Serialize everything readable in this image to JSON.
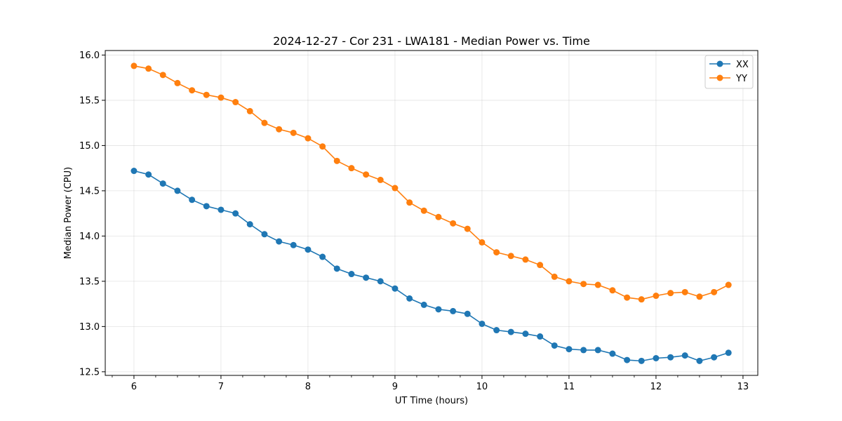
{
  "chart_data": {
    "type": "line",
    "title": "2024-12-27 - Cor 231 - LWA181 - Median Power vs. Time",
    "xlabel": "UT Time (hours)",
    "ylabel": "Median Power (CPU)",
    "xlim": [
      5.67,
      13.17
    ],
    "ylim": [
      12.46,
      16.05
    ],
    "xticks": [
      6,
      7,
      8,
      9,
      10,
      11,
      12,
      13
    ],
    "xtick_labels": [
      "6",
      "7",
      "8",
      "9",
      "10",
      "11",
      "12",
      "13"
    ],
    "yticks": [
      12.5,
      13.0,
      13.5,
      14.0,
      14.5,
      15.0,
      15.5,
      16.0
    ],
    "ytick_labels": [
      "12.5",
      "13.0",
      "13.5",
      "14.0",
      "14.5",
      "15.0",
      "15.5",
      "16.0"
    ],
    "x_minor_step": 0.25,
    "grid": true,
    "legend_position": "top-right",
    "x": [
      6.0,
      6.167,
      6.333,
      6.5,
      6.667,
      6.833,
      7.0,
      7.167,
      7.333,
      7.5,
      7.667,
      7.833,
      8.0,
      8.167,
      8.333,
      8.5,
      8.667,
      8.833,
      9.0,
      9.167,
      9.333,
      9.5,
      9.667,
      9.833,
      10.0,
      10.167,
      10.333,
      10.5,
      10.667,
      10.833,
      11.0,
      11.167,
      11.333,
      11.5,
      11.667,
      11.833,
      12.0,
      12.167,
      12.333,
      12.5,
      12.667,
      12.833
    ],
    "series": [
      {
        "name": "XX",
        "color": "#1f77b4",
        "values": [
          14.72,
          14.68,
          14.58,
          14.5,
          14.4,
          14.33,
          14.29,
          14.25,
          14.13,
          14.02,
          13.94,
          13.9,
          13.85,
          13.77,
          13.64,
          13.58,
          13.54,
          13.5,
          13.42,
          13.31,
          13.24,
          13.19,
          13.17,
          13.14,
          13.03,
          12.96,
          12.94,
          12.92,
          12.89,
          12.79,
          12.75,
          12.74,
          12.74,
          12.7,
          12.63,
          12.62,
          12.65,
          12.66,
          12.68,
          12.62,
          12.66,
          12.71
        ]
      },
      {
        "name": "YY",
        "color": "#ff7f0e",
        "values": [
          15.88,
          15.85,
          15.78,
          15.69,
          15.61,
          15.56,
          15.53,
          15.48,
          15.38,
          15.25,
          15.18,
          15.14,
          15.08,
          14.99,
          14.83,
          14.75,
          14.68,
          14.62,
          14.53,
          14.37,
          14.28,
          14.21,
          14.14,
          14.08,
          13.93,
          13.82,
          13.78,
          13.74,
          13.68,
          13.55,
          13.5,
          13.47,
          13.46,
          13.4,
          13.32,
          13.3,
          13.34,
          13.37,
          13.38,
          13.33,
          13.38,
          13.46
        ]
      }
    ]
  }
}
